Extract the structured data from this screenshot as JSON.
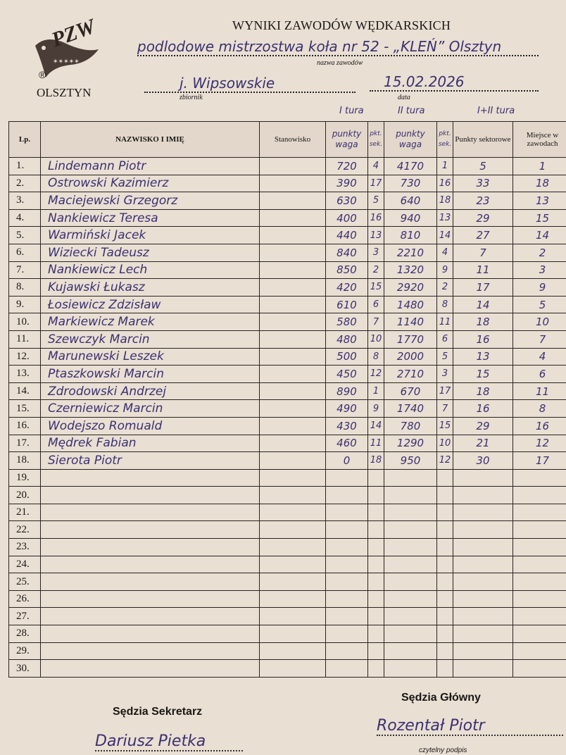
{
  "header": {
    "organization": "PZW",
    "city": "OLSZTYN",
    "registered_mark": "®",
    "title": "WYNIKI ZAWODÓW WĘDKARSKICH",
    "competition_name": "podlodowe mistrzostwa koła nr 52 - „KLEŃ” Olsztyn",
    "competition_name_caption": "nazwa zawodów",
    "water_body": "j. Wipsowskie",
    "water_body_caption": "zbiornik",
    "date": "15.02.2026",
    "date_caption": "data",
    "round1_label": "I tura",
    "round2_label": "II tura",
    "round_total_label": "I+II tura"
  },
  "table": {
    "columns": {
      "lp": "Lp.",
      "name": "NAZWISKO I IMIĘ",
      "station": "Stanowisko",
      "r1_weight": "punkty waga",
      "r1_sector": "pkt. sek.",
      "r2_weight": "punkty waga",
      "r2_sector": "pkt. sek.",
      "sector_points": "Punkty sektorowe",
      "place": "Miejsce w zawodach"
    },
    "rows": [
      {
        "lp": "1.",
        "name": "Lindemann Piotr",
        "r1w": "720",
        "r1s": "4",
        "r2w": "4170",
        "r2s": "1",
        "pts": "5",
        "place": "1"
      },
      {
        "lp": "2.",
        "name": "Ostrowski Kazimierz",
        "r1w": "390",
        "r1s": "17",
        "r2w": "730",
        "r2s": "16",
        "pts": "33",
        "place": "18"
      },
      {
        "lp": "3.",
        "name": "Maciejewski Grzegorz",
        "r1w": "630",
        "r1s": "5",
        "r2w": "640",
        "r2s": "18",
        "pts": "23",
        "place": "13"
      },
      {
        "lp": "4.",
        "name": "Nankiewicz Teresa",
        "r1w": "400",
        "r1s": "16",
        "r2w": "940",
        "r2s": "13",
        "pts": "29",
        "place": "15"
      },
      {
        "lp": "5.",
        "name": "Warmiński Jacek",
        "r1w": "440",
        "r1s": "13",
        "r2w": "810",
        "r2s": "14",
        "pts": "27",
        "place": "14"
      },
      {
        "lp": "6.",
        "name": "Wiziecki Tadeusz",
        "r1w": "840",
        "r1s": "3",
        "r2w": "2210",
        "r2s": "4",
        "pts": "7",
        "place": "2"
      },
      {
        "lp": "7.",
        "name": "Nankiewicz Lech",
        "r1w": "850",
        "r1s": "2",
        "r2w": "1320",
        "r2s": "9",
        "pts": "11",
        "place": "3"
      },
      {
        "lp": "8.",
        "name": "Kujawski Łukasz",
        "r1w": "420",
        "r1s": "15",
        "r2w": "2920",
        "r2s": "2",
        "pts": "17",
        "place": "9"
      },
      {
        "lp": "9.",
        "name": "Łosiewicz Zdzisław",
        "r1w": "610",
        "r1s": "6",
        "r2w": "1480",
        "r2s": "8",
        "pts": "14",
        "place": "5"
      },
      {
        "lp": "10.",
        "name": "Markiewicz Marek",
        "r1w": "580",
        "r1s": "7",
        "r2w": "1140",
        "r2s": "11",
        "pts": "18",
        "place": "10"
      },
      {
        "lp": "11.",
        "name": "Szewczyk Marcin",
        "r1w": "480",
        "r1s": "10",
        "r2w": "1770",
        "r2s": "6",
        "pts": "16",
        "place": "7"
      },
      {
        "lp": "12.",
        "name": "Marunewski Leszek",
        "r1w": "500",
        "r1s": "8",
        "r2w": "2000",
        "r2s": "5",
        "pts": "13",
        "place": "4"
      },
      {
        "lp": "13.",
        "name": "Ptaszkowski Marcin",
        "r1w": "450",
        "r1s": "12",
        "r2w": "2710",
        "r2s": "3",
        "pts": "15",
        "place": "6"
      },
      {
        "lp": "14.",
        "name": "Zdrodowski Andrzej",
        "r1w": "890",
        "r1s": "1",
        "r2w": "670",
        "r2s": "17",
        "pts": "18",
        "place": "11"
      },
      {
        "lp": "15.",
        "name": "Czerniewicz Marcin",
        "r1w": "490",
        "r1s": "9",
        "r2w": "1740",
        "r2s": "7",
        "pts": "16",
        "place": "8"
      },
      {
        "lp": "16.",
        "name": "Wodejszo Romuald",
        "r1w": "430",
        "r1s": "14",
        "r2w": "780",
        "r2s": "15",
        "pts": "29",
        "place": "16"
      },
      {
        "lp": "17.",
        "name": "Mędrek Fabian",
        "r1w": "460",
        "r1s": "11",
        "r2w": "1290",
        "r2s": "10",
        "pts": "21",
        "place": "12"
      },
      {
        "lp": "18.",
        "name": "Sierota Piotr",
        "r1w": "0",
        "r1s": "18",
        "r2w": "950",
        "r2s": "12",
        "pts": "30",
        "place": "17"
      },
      {
        "lp": "19."
      },
      {
        "lp": "20."
      },
      {
        "lp": "21."
      },
      {
        "lp": "22."
      },
      {
        "lp": "23."
      },
      {
        "lp": "24."
      },
      {
        "lp": "25."
      },
      {
        "lp": "26."
      },
      {
        "lp": "27."
      },
      {
        "lp": "28."
      },
      {
        "lp": "29."
      },
      {
        "lp": "30."
      }
    ]
  },
  "footer": {
    "secretary_label": "Sędzia Sekretarz",
    "secretary_signature": "Dariusz Pietka",
    "chief_label": "Sędzia Główny",
    "chief_signature": "Rozentał Piotr",
    "readable_signature_caption": "czytelny podpis"
  }
}
